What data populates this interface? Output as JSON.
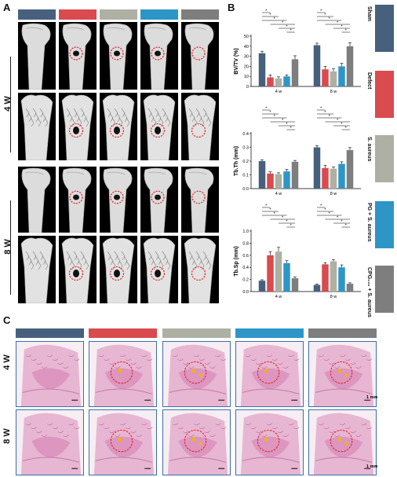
{
  "panels": {
    "a": "A",
    "b": "B",
    "c": "C"
  },
  "colors": {
    "sham": "#47607e",
    "defect": "#d94b4e",
    "saureus": "#aeb0a4",
    "pg": "#2e96c6",
    "cpg": "#7e7e7e"
  },
  "panel_a": {
    "weeks": [
      "4 W",
      "8 W"
    ]
  },
  "legend": {
    "items": [
      {
        "label": "Sham",
        "color": "#47607e"
      },
      {
        "label": "Defect",
        "color": "#d94b4e"
      },
      {
        "label": "S. aureus",
        "color": "#aeb0a4"
      },
      {
        "label": "PG + S. aureus",
        "color": "#2e96c6"
      },
      {
        "label": "CPG₁₀₀ + S. aureus",
        "color": "#7e7e7e"
      }
    ]
  },
  "panel_c": {
    "weeks": [
      "4 W",
      "8 W"
    ],
    "scale_label": "1 mm"
  },
  "chart_data": [
    {
      "type": "bar",
      "ylabel": "BV/TV (%)",
      "categories": [
        "4 w",
        "8 w"
      ],
      "ylim": [
        0,
        50
      ],
      "yticks": [
        0,
        10,
        20,
        30,
        40,
        50
      ],
      "series": [
        {
          "name": "Sham",
          "values": [
            33,
            41
          ],
          "err": [
            2,
            2
          ]
        },
        {
          "name": "Defect",
          "values": [
            9,
            17
          ],
          "err": [
            2.5,
            3
          ]
        },
        {
          "name": "S. aureus",
          "values": [
            8,
            15
          ],
          "err": [
            1.5,
            2.5
          ]
        },
        {
          "name": "PG + S. aureus",
          "values": [
            10,
            20
          ],
          "err": [
            1.5,
            3
          ]
        },
        {
          "name": "CPG₁₀₀ + S. aureus",
          "values": [
            27,
            40
          ],
          "err": [
            3.5,
            3.5
          ]
        }
      ],
      "star": "*"
    },
    {
      "type": "bar",
      "ylabel": "Tb.Th (mm)",
      "categories": [
        "4 w",
        "8 w"
      ],
      "ylim": [
        0,
        0.4
      ],
      "yticks": [
        "0.0",
        "0.1",
        "0.2",
        "0.3",
        "0.4"
      ],
      "series": [
        {
          "name": "Sham",
          "values": [
            0.2,
            0.3
          ],
          "err": [
            0.01,
            0.012
          ]
        },
        {
          "name": "Defect",
          "values": [
            0.11,
            0.15
          ],
          "err": [
            0.012,
            0.02
          ]
        },
        {
          "name": "S. aureus",
          "values": [
            0.105,
            0.145
          ],
          "err": [
            0.01,
            0.012
          ]
        },
        {
          "name": "PG + S. aureus",
          "values": [
            0.125,
            0.18
          ],
          "err": [
            0.015,
            0.015
          ]
        },
        {
          "name": "CPG₁₀₀ + S. aureus",
          "values": [
            0.195,
            0.28
          ],
          "err": [
            0.01,
            0.018
          ]
        }
      ],
      "star": "*"
    },
    {
      "type": "bar",
      "ylabel": "Tb.Sp (mm)",
      "categories": [
        "4 w",
        "8 w"
      ],
      "ylim": [
        0,
        1.0
      ],
      "yticks": [
        "0.0",
        "0.2",
        "0.4",
        "0.6",
        "0.8",
        "1.0"
      ],
      "series": [
        {
          "name": "Sham",
          "values": [
            0.18,
            0.11
          ],
          "err": [
            0.015,
            0.015
          ]
        },
        {
          "name": "Defect",
          "values": [
            0.6,
            0.45
          ],
          "err": [
            0.06,
            0.025
          ]
        },
        {
          "name": "S. aureus",
          "values": [
            0.66,
            0.5
          ],
          "err": [
            0.07,
            0.025
          ]
        },
        {
          "name": "PG + S. aureus",
          "values": [
            0.47,
            0.4
          ],
          "err": [
            0.04,
            0.04
          ]
        },
        {
          "name": "CPG₁₀₀ + S. aureus",
          "values": [
            0.22,
            0.13
          ],
          "err": [
            0.02,
            0.015
          ]
        }
      ],
      "star": "*"
    }
  ]
}
